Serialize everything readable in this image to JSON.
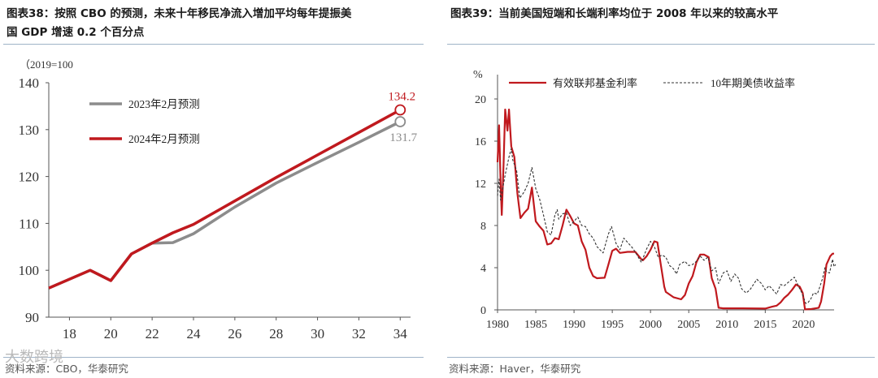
{
  "left": {
    "title_prefix": "图表38：",
    "title_line1": "按照 CBO 的预测，未来十年移民净流入增加平均每年提振美",
    "title_line2": "国 GDP 增速 0.2 个百分点",
    "unit_note": "（2019=100",
    "source": "资料来源：CBO，华泰研究",
    "watermark": "大数跨境"
  },
  "right": {
    "title_prefix": "图表39：",
    "title_line1": "当前美国短端和长端利率均位于 2008 年以来的较高水平",
    "unit": "%",
    "source": "资料来源：Haver，华泰研究"
  },
  "chart_data": [
    {
      "type": "line",
      "ylim": [
        90,
        140
      ],
      "xlim": [
        17,
        34.5
      ],
      "y_ticks": [
        "140",
        "130",
        "120",
        "110",
        "100",
        "90"
      ],
      "x_ticks": [
        "18",
        "20",
        "22",
        "24",
        "26",
        "28",
        "30",
        "32",
        "34"
      ],
      "legend_position": "top-left",
      "series": [
        {
          "name": "2023年2月预测",
          "color": "#8c8c8c",
          "points": [
            [
              17,
              96.2
            ],
            [
              19,
              100.0
            ],
            [
              20,
              97.8
            ],
            [
              21,
              103.5
            ],
            [
              22,
              105.8
            ],
            [
              23,
              105.9
            ],
            [
              24,
              107.8
            ],
            [
              26,
              113.5
            ],
            [
              28,
              118.6
            ],
            [
              30,
              123.0
            ],
            [
              32,
              127.3
            ],
            [
              34,
              131.7
            ]
          ]
        },
        {
          "name": "2024年2月预测",
          "color": "#c0191e",
          "points": [
            [
              17,
              96.2
            ],
            [
              19,
              100.0
            ],
            [
              20,
              97.8
            ],
            [
              21,
              103.5
            ],
            [
              22,
              105.8
            ],
            [
              23,
              108.0
            ],
            [
              24,
              109.8
            ],
            [
              26,
              114.8
            ],
            [
              28,
              119.8
            ],
            [
              30,
              124.6
            ],
            [
              32,
              129.4
            ],
            [
              34,
              134.2
            ]
          ]
        }
      ],
      "end_labels": [
        {
          "series": "2024年2月预测",
          "text": "134.2",
          "color": "#c0191e"
        },
        {
          "series": "2023年2月预测",
          "text": "131.7",
          "color": "#8c8c8c"
        }
      ]
    },
    {
      "type": "line",
      "ylim": [
        0,
        20
      ],
      "xlim": [
        1980,
        2024
      ],
      "y_ticks": [
        "20",
        "16",
        "12",
        "8",
        "4",
        "0"
      ],
      "x_ticks": [
        "1980",
        "1985",
        "1990",
        "1995",
        "2000",
        "2005",
        "2010",
        "2015",
        "2020"
      ],
      "legend_position": "top",
      "series": [
        {
          "name": "有效联邦基金利率",
          "color": "#c0191e",
          "style": "solid",
          "points": [
            [
              1980.0,
              14.0
            ],
            [
              1980.2,
              17.5
            ],
            [
              1980.4,
              12.0
            ],
            [
              1980.55,
              9.0
            ],
            [
              1980.8,
              14.0
            ],
            [
              1981.0,
              19.0
            ],
            [
              1981.3,
              17.0
            ],
            [
              1981.5,
              19.0
            ],
            [
              1981.8,
              15.5
            ],
            [
              1982.2,
              14.5
            ],
            [
              1982.6,
              11.0
            ],
            [
              1983.0,
              8.7
            ],
            [
              1983.5,
              9.2
            ],
            [
              1984.0,
              9.6
            ],
            [
              1984.5,
              11.6
            ],
            [
              1985.0,
              8.4
            ],
            [
              1985.5,
              7.9
            ],
            [
              1986.0,
              7.5
            ],
            [
              1986.5,
              6.2
            ],
            [
              1987.0,
              6.3
            ],
            [
              1987.5,
              6.8
            ],
            [
              1988.0,
              6.7
            ],
            [
              1988.5,
              8.0
            ],
            [
              1989.0,
              9.5
            ],
            [
              1989.5,
              8.9
            ],
            [
              1990.0,
              8.2
            ],
            [
              1990.5,
              8.0
            ],
            [
              1991.0,
              6.5
            ],
            [
              1991.5,
              5.7
            ],
            [
              1992.0,
              4.0
            ],
            [
              1992.5,
              3.2
            ],
            [
              1993.0,
              3.0
            ],
            [
              1994.0,
              3.05
            ],
            [
              1994.5,
              4.3
            ],
            [
              1995.0,
              5.6
            ],
            [
              1995.5,
              5.8
            ],
            [
              1996.0,
              5.4
            ],
            [
              1997.0,
              5.5
            ],
            [
              1998.0,
              5.5
            ],
            [
              1998.8,
              4.8
            ],
            [
              1999.0,
              4.7
            ],
            [
              1999.5,
              5.1
            ],
            [
              2000.0,
              5.7
            ],
            [
              2000.5,
              6.5
            ],
            [
              2000.9,
              6.4
            ],
            [
              2001.3,
              4.5
            ],
            [
              2001.8,
              2.2
            ],
            [
              2002.0,
              1.7
            ],
            [
              2003.0,
              1.2
            ],
            [
              2004.0,
              1.0
            ],
            [
              2004.5,
              1.4
            ],
            [
              2005.0,
              2.5
            ],
            [
              2005.5,
              3.2
            ],
            [
              2006.0,
              4.5
            ],
            [
              2006.5,
              5.25
            ],
            [
              2007.0,
              5.25
            ],
            [
              2007.6,
              5.0
            ],
            [
              2008.0,
              3.0
            ],
            [
              2008.5,
              2.0
            ],
            [
              2008.9,
              0.2
            ],
            [
              2009.5,
              0.15
            ],
            [
              2012.0,
              0.15
            ],
            [
              2015.0,
              0.12
            ],
            [
              2015.9,
              0.3
            ],
            [
              2016.5,
              0.4
            ],
            [
              2017.0,
              0.7
            ],
            [
              2017.5,
              1.15
            ],
            [
              2018.0,
              1.45
            ],
            [
              2018.5,
              1.9
            ],
            [
              2019.0,
              2.4
            ],
            [
              2019.5,
              2.2
            ],
            [
              2019.9,
              1.6
            ],
            [
              2020.2,
              0.05
            ],
            [
              2021.0,
              0.08
            ],
            [
              2022.0,
              0.2
            ],
            [
              2022.3,
              0.8
            ],
            [
              2022.7,
              2.5
            ],
            [
              2023.0,
              4.3
            ],
            [
              2023.5,
              5.1
            ],
            [
              2023.8,
              5.33
            ],
            [
              2024.0,
              5.33
            ]
          ]
        },
        {
          "name": "10年期美债收益率",
          "color": "#333333",
          "style": "dashed",
          "points": [
            [
              1980.0,
              10.8
            ],
            [
              1980.2,
              12.4
            ],
            [
              1980.4,
              10.4
            ],
            [
              1980.6,
              11.2
            ],
            [
              1981.0,
              12.8
            ],
            [
              1981.5,
              14.5
            ],
            [
              1981.8,
              15.3
            ],
            [
              1982.0,
              14.2
            ],
            [
              1982.5,
              13.2
            ],
            [
              1982.9,
              10.6
            ],
            [
              1983.5,
              11.2
            ],
            [
              1984.0,
              12.0
            ],
            [
              1984.5,
              13.5
            ],
            [
              1985.0,
              11.5
            ],
            [
              1985.5,
              10.5
            ],
            [
              1986.0,
              9.0
            ],
            [
              1986.5,
              7.4
            ],
            [
              1987.0,
              7.1
            ],
            [
              1987.5,
              9.0
            ],
            [
              1987.8,
              9.5
            ],
            [
              1988.0,
              8.6
            ],
            [
              1988.5,
              9.1
            ],
            [
              1989.0,
              9.2
            ],
            [
              1989.5,
              8.0
            ],
            [
              1990.0,
              8.4
            ],
            [
              1990.5,
              8.8
            ],
            [
              1991.0,
              8.0
            ],
            [
              1991.5,
              7.9
            ],
            [
              1992.0,
              7.2
            ],
            [
              1992.5,
              6.8
            ],
            [
              1993.0,
              6.0
            ],
            [
              1993.8,
              5.4
            ],
            [
              1994.5,
              7.2
            ],
            [
              1994.9,
              7.9
            ],
            [
              1995.5,
              6.3
            ],
            [
              1996.0,
              5.7
            ],
            [
              1996.5,
              6.8
            ],
            [
              1997.0,
              6.4
            ],
            [
              1997.5,
              6.0
            ],
            [
              1998.0,
              5.5
            ],
            [
              1998.8,
              4.5
            ],
            [
              1999.5,
              5.8
            ],
            [
              2000.0,
              6.5
            ],
            [
              2000.5,
              6.0
            ],
            [
              2001.0,
              5.0
            ],
            [
              2001.5,
              5.2
            ],
            [
              2002.0,
              5.0
            ],
            [
              2002.5,
              4.2
            ],
            [
              2003.0,
              3.9
            ],
            [
              2003.4,
              3.4
            ],
            [
              2003.8,
              4.3
            ],
            [
              2004.5,
              4.6
            ],
            [
              2005.0,
              4.2
            ],
            [
              2005.5,
              4.3
            ],
            [
              2006.0,
              4.6
            ],
            [
              2006.5,
              5.1
            ],
            [
              2007.0,
              4.7
            ],
            [
              2007.5,
              5.0
            ],
            [
              2008.0,
              3.7
            ],
            [
              2008.5,
              4.0
            ],
            [
              2008.9,
              2.5
            ],
            [
              2009.5,
              3.5
            ],
            [
              2010.0,
              3.7
            ],
            [
              2010.5,
              2.7
            ],
            [
              2011.0,
              3.4
            ],
            [
              2011.5,
              3.0
            ],
            [
              2011.9,
              2.0
            ],
            [
              2012.5,
              1.6
            ],
            [
              2013.0,
              1.9
            ],
            [
              2013.9,
              2.9
            ],
            [
              2014.5,
              2.5
            ],
            [
              2015.0,
              1.9
            ],
            [
              2015.5,
              2.3
            ],
            [
              2016.5,
              1.5
            ],
            [
              2017.0,
              2.4
            ],
            [
              2017.5,
              2.3
            ],
            [
              2018.0,
              2.6
            ],
            [
              2018.8,
              3.1
            ],
            [
              2019.5,
              2.0
            ],
            [
              2019.8,
              1.6
            ],
            [
              2020.3,
              0.6
            ],
            [
              2020.6,
              0.7
            ],
            [
              2021.0,
              1.1
            ],
            [
              2021.3,
              1.6
            ],
            [
              2021.8,
              1.5
            ],
            [
              2022.0,
              1.9
            ],
            [
              2022.5,
              3.0
            ],
            [
              2022.8,
              4.0
            ],
            [
              2023.0,
              3.6
            ],
            [
              2023.4,
              3.5
            ],
            [
              2023.8,
              4.8
            ],
            [
              2024.0,
              4.1
            ],
            [
              2024.2,
              4.3
            ]
          ]
        }
      ]
    }
  ]
}
